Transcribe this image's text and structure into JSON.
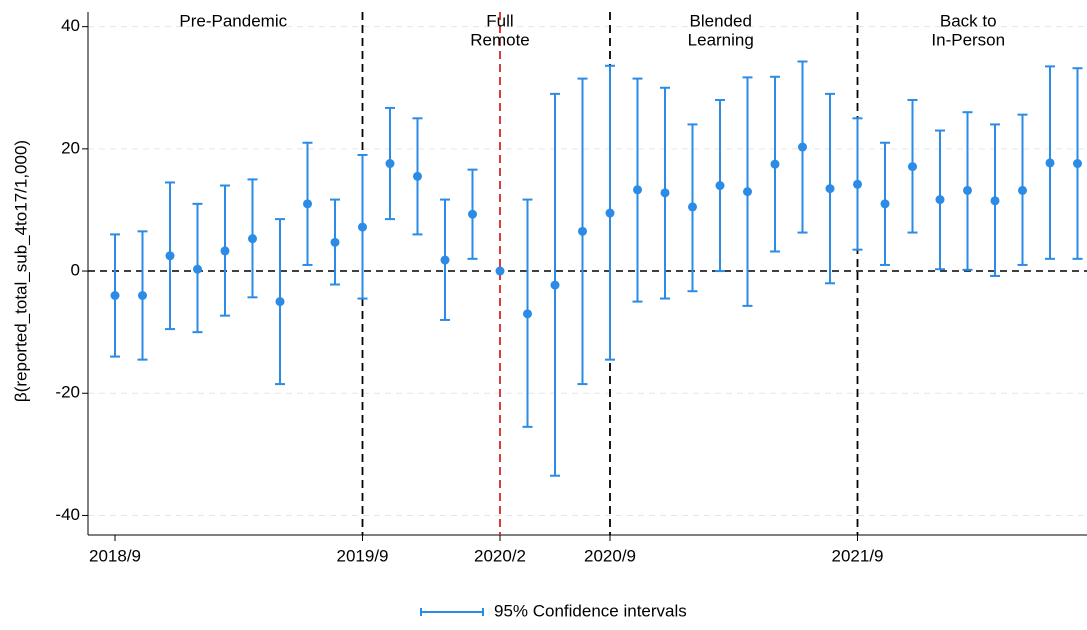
{
  "chart_data": {
    "type": "errorbar",
    "y_label": "β(reported_total_sub_4to17/1,000)",
    "legend": "95% Confidence intervals",
    "color": "#2b8be6",
    "categories": [
      "2018/9",
      null,
      null,
      null,
      null,
      null,
      null,
      null,
      null,
      "2019/9",
      null,
      null,
      null,
      null,
      "2020/2",
      null,
      null,
      null,
      "2020/9",
      null,
      null,
      null,
      null,
      null,
      null,
      null,
      null,
      "2021/9",
      null,
      null,
      null,
      null,
      null,
      null,
      null,
      null
    ],
    "values": [
      -4,
      -4,
      2.5,
      0.3,
      3.3,
      5.3,
      -5,
      11,
      4.7,
      7.2,
      17.6,
      15.5,
      1.8,
      9.3,
      0,
      -7,
      -2.3,
      6.5,
      9.5,
      13.3,
      12.8,
      10.5,
      14,
      13,
      17.5,
      20.3,
      13.5,
      14.2,
      11,
      17.1,
      11.7,
      13.2,
      11.5,
      13.2,
      17.7,
      17.6
    ],
    "lower": [
      -14,
      -14.5,
      -9.5,
      -10,
      -7.3,
      -4.3,
      -18.5,
      1,
      -2.2,
      -4.5,
      8.5,
      6,
      -8,
      2,
      null,
      -25.5,
      -33.5,
      -18.5,
      -14.5,
      -5,
      -4.5,
      -3.3,
      0,
      -5.7,
      3.2,
      6.3,
      -2,
      3.5,
      1,
      6.3,
      0.3,
      0.2,
      -0.8,
      1,
      2,
      2
    ],
    "upper": [
      6,
      6.5,
      14.5,
      11,
      14,
      15,
      8.5,
      21,
      11.7,
      19,
      26.7,
      25,
      11.7,
      16.6,
      null,
      11.7,
      29,
      31.5,
      33.6,
      31.5,
      30,
      24,
      28,
      31.7,
      31.8,
      34.3,
      29,
      25,
      21,
      28,
      23,
      26,
      24,
      25.6,
      33.5,
      33.2
    ],
    "ylim": [
      -43.2,
      42.4
    ],
    "yticks": [
      -40,
      -20,
      0,
      20,
      40
    ],
    "grid": true,
    "vlines": [
      {
        "at": "2019/9",
        "color": "#000000"
      },
      {
        "at": "2020/2",
        "color": "#d62728"
      },
      {
        "at": "2020/9",
        "color": "#000000"
      },
      {
        "at": "2021/9",
        "color": "#000000"
      }
    ],
    "periods": [
      [
        "Pre-Pandemic"
      ],
      [
        "Full",
        "Remote"
      ],
      [
        "Blended",
        "Learning"
      ],
      [
        "Back to",
        "In-Person"
      ]
    ]
  }
}
